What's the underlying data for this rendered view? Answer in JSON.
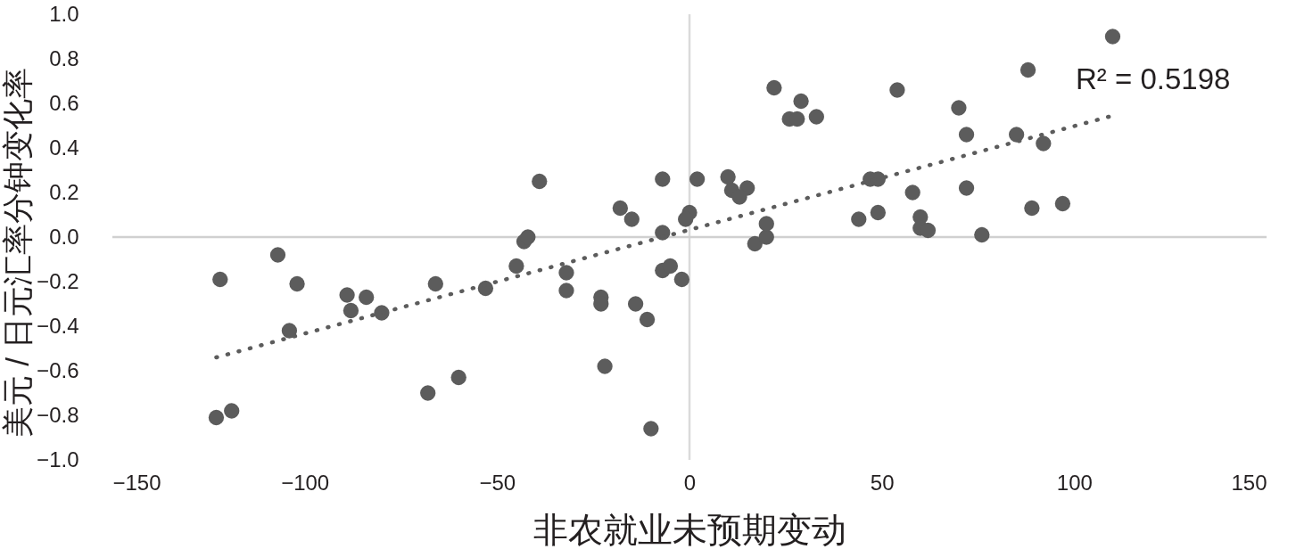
{
  "chart_data": {
    "type": "scatter",
    "xlabel": "非农就业未预期变动",
    "ylabel": "美元 / 日元汇率分钟变化率",
    "annotations": [
      "R² = 0.5198"
    ],
    "xlim": [
      -150,
      150
    ],
    "ylim": [
      -1,
      1
    ],
    "xticks": [
      {
        "value": -150,
        "label": "−150"
      },
      {
        "value": -100,
        "label": "−100"
      },
      {
        "value": -50,
        "label": "−50"
      },
      0,
      50,
      100,
      150
    ],
    "yticks": [
      {
        "value": 1,
        "label": "1.0"
      },
      {
        "value": 0.8,
        "label": "0.8"
      },
      {
        "value": 0.6,
        "label": "0.6"
      },
      {
        "value": 0.4,
        "label": "0.4"
      },
      {
        "value": 0.2,
        "label": "0.2"
      },
      {
        "value": 0,
        "label": "0.0"
      },
      {
        "value": -0.2,
        "label": "−0.2"
      },
      {
        "value": -0.4,
        "label": "−0.4"
      },
      {
        "value": -0.6,
        "label": "−0.6"
      },
      {
        "value": -0.8,
        "label": "−0.8"
      },
      {
        "value": -1,
        "label": "−1.0"
      }
    ],
    "grid": false,
    "ref_lines": [
      {
        "axis": "x",
        "value": 0,
        "color": "#dadada"
      },
      {
        "axis": "y",
        "value": 0,
        "color": "#d0d0d0"
      }
    ],
    "series": [
      {
        "color": "#5c5c5c",
        "marker": "circle",
        "x": [
          -122,
          -107,
          -102,
          -89,
          -84,
          -88,
          -80,
          -104,
          -66,
          -53,
          -60,
          -68,
          -119,
          -123,
          -43,
          -42,
          -45,
          -32,
          -32,
          -23,
          -23,
          -14,
          -11,
          -22,
          -10,
          -7,
          -5,
          -2,
          17,
          20,
          -39,
          -18,
          -15,
          -7,
          -7,
          0,
          -1,
          2,
          10,
          11,
          15,
          13,
          20,
          22,
          29,
          26,
          28,
          33,
          47,
          49,
          44,
          49,
          54,
          110,
          88,
          70,
          72,
          85,
          92,
          58,
          72,
          60,
          60,
          62,
          76,
          89,
          97
        ],
        "values": [
          -0.19,
          -0.08,
          -0.21,
          -0.26,
          -0.27,
          -0.33,
          -0.34,
          -0.42,
          -0.21,
          -0.23,
          -0.63,
          -0.7,
          -0.78,
          -0.81,
          -0.02,
          0.0,
          -0.13,
          -0.16,
          -0.24,
          -0.27,
          -0.3,
          -0.3,
          -0.37,
          -0.58,
          -0.86,
          -0.15,
          -0.13,
          -0.19,
          -0.03,
          0.0,
          0.25,
          0.13,
          0.08,
          0.26,
          0.02,
          0.11,
          0.08,
          0.26,
          0.27,
          0.21,
          0.22,
          0.18,
          0.06,
          0.67,
          0.61,
          0.53,
          0.53,
          0.54,
          0.26,
          0.26,
          0.08,
          0.11,
          0.66,
          0.9,
          0.75,
          0.58,
          0.46,
          0.46,
          0.42,
          0.2,
          0.22,
          0.09,
          0.04,
          0.03,
          0.01,
          0.13,
          0.15
        ]
      },
      {
        "type": "line",
        "line_style": "dotted",
        "marker": "none",
        "color": "#5c5c5c",
        "x": [
          -123,
          109
        ],
        "values": [
          -0.54,
          0.54
        ]
      }
    ]
  }
}
